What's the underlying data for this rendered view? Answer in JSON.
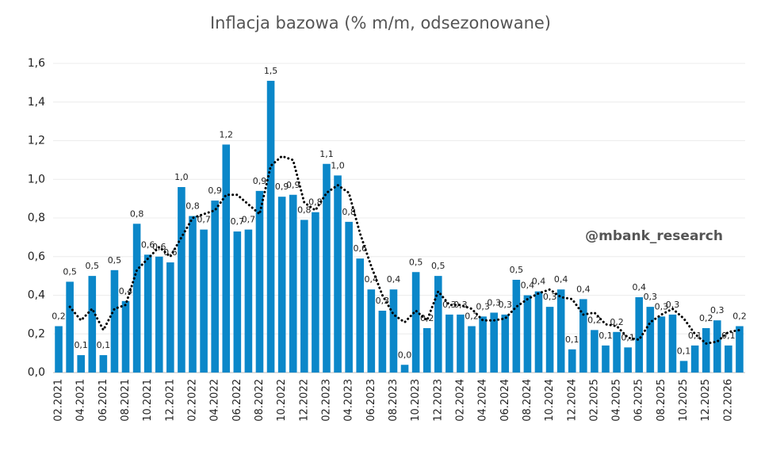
{
  "chart_data": {
    "type": "bar",
    "title": "Inflacja bazowa (% m/m, odsezonowane)",
    "annotation": "@mbank_research",
    "categories": [
      "02.2021",
      null,
      "04.2021",
      null,
      "06.2021",
      null,
      "08.2021",
      null,
      "10.2021",
      null,
      "12.2021",
      null,
      "02.2022",
      null,
      "04.2022",
      null,
      "06.2022",
      null,
      "08.2022",
      null,
      "10.2022",
      null,
      "12.2022",
      null,
      "02.2023",
      null,
      "04.2023",
      null,
      "06.2023",
      null,
      "08.2023",
      null,
      "10.2023",
      null,
      "12.2023",
      null,
      "02.2024",
      null,
      "04.2024",
      null,
      "06.2024",
      null,
      "08.2024",
      null,
      "10.2024",
      null,
      "12.2024",
      null,
      "02.2025",
      null,
      "04.2025",
      null,
      "06.2025",
      null,
      "08.2025",
      null,
      "10.2025",
      null,
      "12.2025",
      null,
      "02.2026",
      null
    ],
    "series": [
      {
        "type": "bar",
        "color": "#0b87c9",
        "values": [
          0.24,
          0.47,
          0.09,
          0.5,
          0.09,
          0.53,
          0.37,
          0.77,
          0.61,
          0.6,
          0.57,
          0.96,
          0.81,
          0.74,
          0.89,
          1.18,
          0.73,
          0.74,
          0.94,
          1.51,
          0.91,
          0.92,
          0.79,
          0.83,
          1.08,
          1.02,
          0.78,
          0.59,
          0.43,
          0.32,
          0.43,
          0.04,
          0.52,
          0.23,
          0.5,
          0.3,
          0.3,
          0.24,
          0.29,
          0.31,
          0.3,
          0.48,
          0.4,
          0.42,
          0.34,
          0.43,
          0.12,
          0.38,
          0.22,
          0.14,
          0.21,
          0.13,
          0.39,
          0.34,
          0.29,
          0.3,
          0.06,
          0.14,
          0.23,
          0.27,
          0.14,
          0.24
        ],
        "value_labels": [
          "0,2",
          "0,5",
          "0,1",
          "0,5",
          "0,1",
          "0,5",
          "0,4",
          "0,8",
          "0,6",
          "0,6",
          "0,6",
          "1,0",
          "0,8",
          "0,7",
          "0,9",
          "1,2",
          "0,7",
          "0,7",
          "0,9",
          "1,5",
          "0,9",
          "0,9",
          "0,8",
          "0,8",
          "1,1",
          "1,0",
          "0,8",
          "0,6",
          "0,4",
          "0,3",
          "0,4",
          "0,0",
          "0,5",
          "0,2",
          "0,5",
          "0,3",
          "0,3",
          "0,2",
          "0,3",
          "0,3",
          "0,3",
          "0,5",
          "0,4",
          "0,4",
          "0,3",
          "0,4",
          "0,1",
          "0,4",
          "0,2",
          "0,1",
          "0,2",
          "0,1",
          "0,4",
          "0,3",
          "0,3",
          "0,3",
          "0,1",
          "0,1",
          "0,2",
          "0,3",
          "0,1",
          "0,2"
        ]
      },
      {
        "type": "line",
        "color": "#000000",
        "style": "dotted",
        "values": [
          null,
          0.34,
          0.27,
          0.33,
          0.22,
          0.33,
          0.35,
          0.53,
          0.59,
          0.65,
          0.6,
          0.7,
          0.8,
          0.82,
          0.84,
          0.92,
          0.92,
          0.87,
          0.82,
          1.07,
          1.12,
          1.1,
          0.88,
          0.84,
          0.93,
          0.97,
          0.93,
          0.72,
          0.55,
          0.4,
          0.3,
          0.26,
          0.32,
          0.27,
          0.42,
          0.35,
          0.35,
          0.33,
          0.27,
          0.27,
          0.28,
          0.34,
          0.38,
          0.41,
          0.43,
          0.39,
          0.38,
          0.3,
          0.31,
          0.25,
          0.24,
          0.18,
          0.17,
          0.26,
          0.3,
          0.33,
          0.28,
          0.2,
          0.15,
          0.16,
          0.21,
          0.22
        ]
      }
    ],
    "ylim": [
      0,
      1.6
    ],
    "yticks": [
      {
        "value": 0,
        "label": "0,0"
      },
      {
        "value": 0.2,
        "label": "0,2"
      },
      {
        "value": 0.4,
        "label": "0,4"
      },
      {
        "value": 0.6,
        "label": "0,6"
      },
      {
        "value": 0.8,
        "label": "0,8"
      },
      {
        "value": 1.0,
        "label": "1,0"
      },
      {
        "value": 1.2,
        "label": "1,2"
      },
      {
        "value": 1.4,
        "label": "1,4"
      },
      {
        "value": 1.6,
        "label": "1,6"
      }
    ],
    "grid": true
  }
}
